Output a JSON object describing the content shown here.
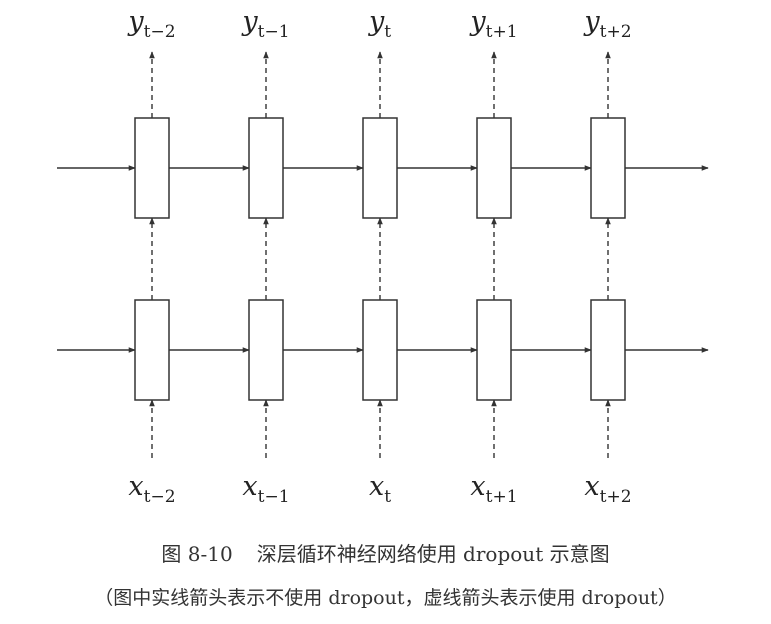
{
  "diagram": {
    "outputs": [
      {
        "base": "y",
        "sub": "t−2"
      },
      {
        "base": "y",
        "sub": "t−1"
      },
      {
        "base": "y",
        "sub": "t"
      },
      {
        "base": "y",
        "sub": "t+1"
      },
      {
        "base": "y",
        "sub": "t+2"
      }
    ],
    "inputs": [
      {
        "base": "x",
        "sub": "t−2"
      },
      {
        "base": "x",
        "sub": "t−1"
      },
      {
        "base": "x",
        "sub": "t"
      },
      {
        "base": "x",
        "sub": "t+1"
      },
      {
        "base": "x",
        "sub": "t+2"
      }
    ],
    "layers": 2,
    "timesteps": 5,
    "colors": {
      "line": "#333333",
      "box_fill": "#ffffff"
    }
  },
  "caption": {
    "figure_number": "图 8-10",
    "title": "深层循环神经网络使用 dropout 示意图",
    "note": "（图中实线箭头表示不使用 dropout，虚线箭头表示使用 dropout）"
  }
}
